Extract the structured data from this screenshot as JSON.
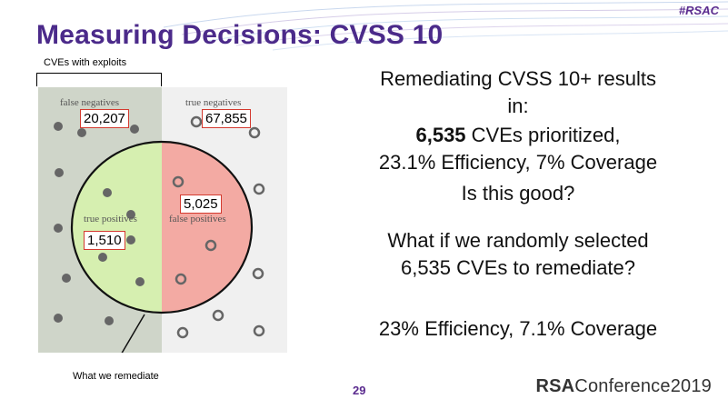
{
  "hashtag": "#RSAC",
  "title": "Measuring Decisions: CVSS 10",
  "diagram": {
    "cves_with_exploits_label": "CVEs with exploits",
    "false_negatives_label": "false negatives",
    "false_negatives_value": "20,207",
    "true_negatives_label": "true negatives",
    "true_negatives_value": "67,855",
    "true_positives_label": "true positives",
    "true_positives_value": "1,510",
    "false_positives_label": "false positives",
    "false_positives_value": "5,025",
    "what_we_remediate_label": "What we remediate",
    "colors": {
      "left_bg": "#cfd5c9",
      "right_bg": "#f0f0f0",
      "left_circle": "#d6efb0",
      "right_circle": "#f3aaa3",
      "box_border": "#d43a2f"
    }
  },
  "right": {
    "line1": "Remediating CVSS 10+ results",
    "line2": "in:",
    "line3_bold": "6,535",
    "line3_rest": " CVEs prioritized,",
    "line4": "23.1% Efficiency, 7% Coverage",
    "line5": "Is this good?",
    "line6": "What if we randomly selected",
    "line7": "6,535 CVEs to remediate?",
    "line8": "23% Efficiency, 7.1% Coverage"
  },
  "page_number": "29",
  "footer": {
    "brand_bold": "RSA",
    "brand_rest": "Conference2019"
  }
}
